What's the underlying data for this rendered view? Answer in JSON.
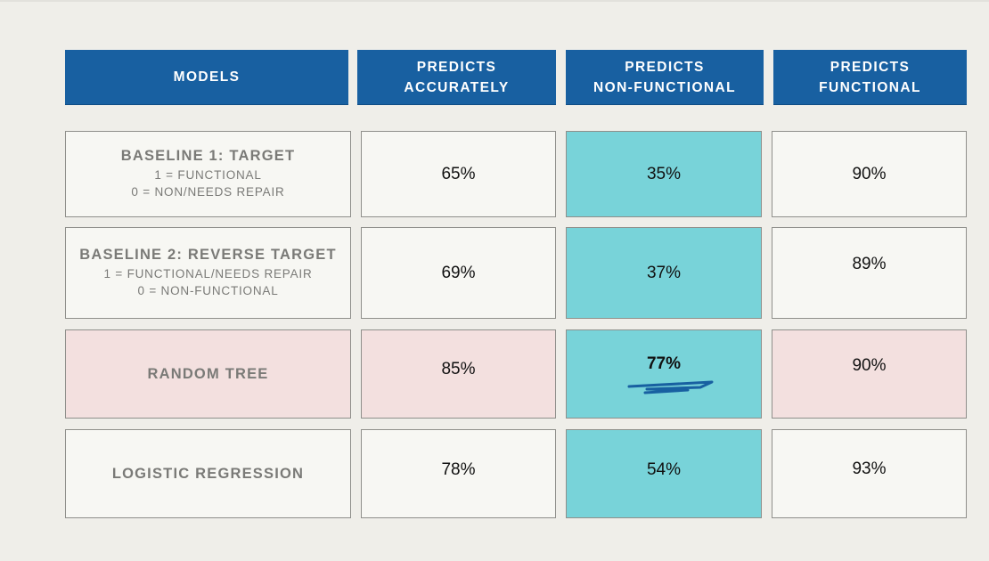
{
  "table": {
    "headers": [
      "MODELS",
      "PREDICTS\nACCURATELY",
      "PREDICTS\nNON-FUNCTIONAL",
      "PREDICTS\nFUNCTIONAL"
    ],
    "rows": [
      {
        "model": "BASELINE 1: TARGET",
        "sub1": "1 = FUNCTIONAL",
        "sub2": "0 = NON/NEEDS REPAIR",
        "accurately": "65%",
        "non_functional": "35%",
        "functional": "90%"
      },
      {
        "model": "BASELINE 2: REVERSE TARGET",
        "sub1": "1 = FUNCTIONAL/NEEDS REPAIR",
        "sub2": "0 = NON-FUNCTIONAL",
        "accurately": "69%",
        "non_functional": "37%",
        "functional": "89%"
      },
      {
        "model": "RANDOM TREE",
        "sub1": "",
        "sub2": "",
        "accurately": "85%",
        "non_functional": "77%",
        "functional": "90%"
      },
      {
        "model": "LOGISTIC REGRESSION",
        "sub1": "",
        "sub2": "",
        "accurately": "78%",
        "non_functional": "54%",
        "functional": "93%"
      }
    ]
  },
  "chart_data": {
    "type": "table",
    "columns": [
      "MODELS",
      "PREDICTS ACCURATELY",
      "PREDICTS NON-FUNCTIONAL",
      "PREDICTS FUNCTIONAL"
    ],
    "rows": [
      [
        "BASELINE 1: TARGET",
        "65%",
        "35%",
        "90%"
      ],
      [
        "BASELINE 2: REVERSE TARGET",
        "69%",
        "37%",
        "89%"
      ],
      [
        "RANDOM TREE",
        "85%",
        "77%",
        "90%"
      ],
      [
        "LOGISTIC REGRESSION",
        "78%",
        "54%",
        "93%"
      ]
    ]
  },
  "colors": {
    "header_bg": "#1860a1",
    "highlight_column": "#78d3d9",
    "highlight_row": "#f3e0df",
    "cell_bg": "#f7f7f3",
    "page_bg": "#efeee9"
  }
}
